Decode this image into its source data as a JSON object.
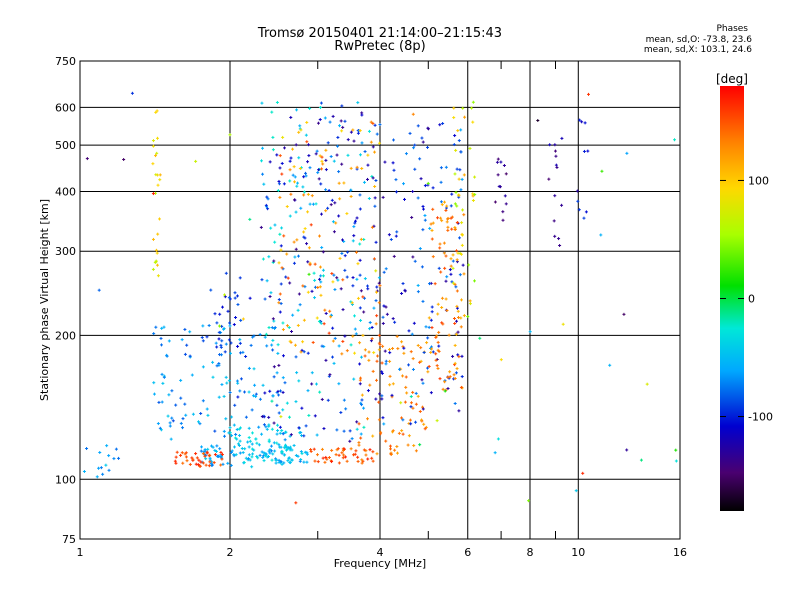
{
  "title_line1": "Tromsø 20150401 21:14:00–21:15:43",
  "title_line2": "RwPretec (8p)",
  "stats_title": "Phases",
  "stats_o": "mean, sd,O: -73.8, 23.6",
  "stats_x": "mean, sd,X: 103.1, 24.6",
  "colorbar_unit": "[deg]",
  "chart_data": {
    "type": "scatter",
    "xlabel": "Frequency [MHz]",
    "ylabel": "Stationary phase Virtual Height [km]",
    "x_scale": "log",
    "y_scale": "log",
    "xlim": [
      1,
      16
    ],
    "ylim": [
      75,
      750
    ],
    "x_ticks": [
      1,
      2,
      4,
      6,
      8,
      10,
      16
    ],
    "x_tick_labels": [
      "1",
      "2",
      "4",
      "6",
      "8",
      "10",
      "16"
    ],
    "x_minor_ticks": [
      3,
      5,
      7,
      9
    ],
    "y_ticks": [
      75,
      100,
      200,
      300,
      400,
      500,
      600,
      750
    ],
    "y_tick_labels": [
      "75",
      "100",
      "200",
      "300",
      "400",
      "500",
      "600",
      "750"
    ],
    "grid": true,
    "colorbar": {
      "label": "[deg]",
      "ticks": [
        100,
        0,
        -100
      ],
      "tick_labels": [
        "100",
        "0",
        "-100"
      ],
      "range": [
        -180,
        180
      ],
      "colormap": "rainbow"
    },
    "clusters": [
      {
        "x": [
          1.75,
          2.9
        ],
        "y": [
          106,
          118
        ],
        "phase": [
          -75,
          -40
        ],
        "n": 95
      },
      {
        "x": [
          1.55,
          1.95
        ],
        "y": [
          106,
          114
        ],
        "phase": [
          140,
          170
        ],
        "n": 40
      },
      {
        "x": [
          2.0,
          2.8
        ],
        "y": [
          108,
          130
        ],
        "phase": [
          -55,
          -25
        ],
        "n": 70
      },
      {
        "x": [
          1.4,
          2.6
        ],
        "y": [
          120,
          210
        ],
        "phase": [
          -90,
          -40
        ],
        "n": 130
      },
      {
        "x": [
          1.7,
          2.2
        ],
        "y": [
          180,
          270
        ],
        "phase": [
          -110,
          -80
        ],
        "n": 35
      },
      {
        "x": [
          2.9,
          3.9
        ],
        "y": [
          108,
          116
        ],
        "phase": [
          130,
          170
        ],
        "n": 45
      },
      {
        "x": [
          2.3,
          4.0
        ],
        "y": [
          120,
          620
        ],
        "phase": [
          -140,
          -20
        ],
        "n": 320
      },
      {
        "x": [
          2.5,
          4.0
        ],
        "y": [
          180,
          560
        ],
        "phase": [
          90,
          160
        ],
        "n": 110
      },
      {
        "x": [
          3.6,
          5.0
        ],
        "y": [
          112,
          200
        ],
        "phase": [
          110,
          150
        ],
        "n": 90
      },
      {
        "x": [
          4.0,
          5.9
        ],
        "y": [
          130,
          560
        ],
        "phase": [
          -140,
          -60
        ],
        "n": 150
      },
      {
        "x": [
          5.0,
          5.9
        ],
        "y": [
          150,
          380
        ],
        "phase": [
          110,
          160
        ],
        "n": 90
      },
      {
        "x": [
          5.6,
          6.2
        ],
        "y": [
          200,
          640
        ],
        "phase": [
          40,
          120
        ],
        "n": 40
      },
      {
        "x": [
          6.8,
          7.2
        ],
        "y": [
          340,
          480
        ],
        "phase": [
          -150,
          -120
        ],
        "n": 12
      },
      {
        "x": [
          8.7,
          9.3
        ],
        "y": [
          300,
          520
        ],
        "phase": [
          -150,
          -110
        ],
        "n": 14
      },
      {
        "x": [
          9.9,
          10.5
        ],
        "y": [
          350,
          600
        ],
        "phase": [
          -130,
          -90
        ],
        "n": 10
      },
      {
        "x": [
          1.4,
          1.45
        ],
        "y": [
          260,
          620
        ],
        "phase": [
          60,
          110
        ],
        "n": 25
      },
      {
        "x": [
          1.0,
          1.2
        ],
        "y": [
          100,
          120
        ],
        "phase": [
          -80,
          -40
        ],
        "n": 14
      },
      {
        "x": [
          1.0,
          16.0
        ],
        "y": [
          80,
          700
        ],
        "phase": [
          -170,
          170
        ],
        "n": 55
      }
    ]
  }
}
